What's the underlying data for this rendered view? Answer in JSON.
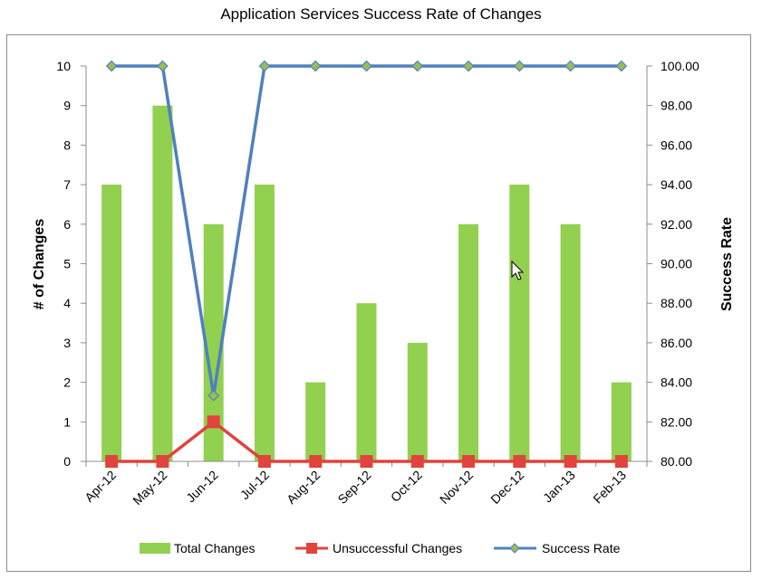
{
  "chart_data": {
    "type": "bar",
    "title": "Application Services Success Rate of Changes",
    "categories": [
      "Apr-12",
      "May-12",
      "Jun-12",
      "Jul-12",
      "Aug-12",
      "Sep-12",
      "Oct-12",
      "Nov-12",
      "Dec-12",
      "Jan-13",
      "Feb-13"
    ],
    "series": [
      {
        "name": "Total Changes",
        "type": "bar",
        "axis": "left",
        "color": "#92d050",
        "values": [
          7,
          9,
          6,
          7,
          2,
          4,
          3,
          6,
          7,
          6,
          2
        ]
      },
      {
        "name": "Unsuccessful Changes",
        "type": "line",
        "axis": "left",
        "color": "#e0443c",
        "values": [
          0,
          0,
          1,
          0,
          0,
          0,
          0,
          0,
          0,
          0,
          0
        ]
      },
      {
        "name": "Success Rate",
        "type": "line",
        "axis": "right",
        "color": "#4f81bd",
        "marker_color": "#9bbb59",
        "values": [
          100,
          100,
          83.33,
          100,
          100,
          100,
          100,
          100,
          100,
          100,
          100
        ]
      }
    ],
    "ylabel": "# of Changes",
    "y2label": "Success Rate",
    "ylim": [
      0,
      10
    ],
    "y2lim": [
      80,
      100
    ],
    "yticks": [
      "0",
      "1",
      "2",
      "3",
      "4",
      "5",
      "6",
      "7",
      "8",
      "9",
      "10"
    ],
    "y2ticks": [
      "80.00",
      "82.00",
      "84.00",
      "86.00",
      "88.00",
      "90.00",
      "92.00",
      "94.00",
      "96.00",
      "98.00",
      "100.00"
    ],
    "grid": false,
    "legend_position": "bottom"
  }
}
